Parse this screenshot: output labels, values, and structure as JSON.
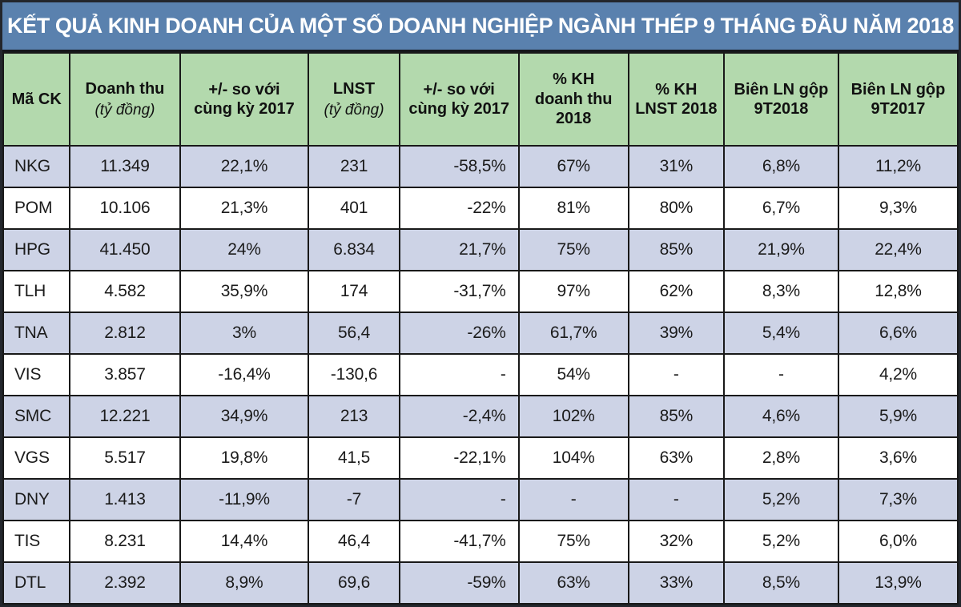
{
  "title": "KẾT QUẢ KINH DOANH CỦA MỘT SỐ DOANH NGHIỆP NGÀNH THÉP 9 THÁNG ĐẦU NĂM 2018",
  "colors": {
    "title_bar": "#5a81ae",
    "header_bg": "#b3d9ad",
    "row_alt_bg": "#cdd3e6",
    "row_bg": "#ffffff",
    "border": "#191919",
    "title_text": "#ffffff"
  },
  "chart_data": {
    "type": "table",
    "title": "KẾT QUẢ KINH DOANH CỦA MỘT SỐ DOANH NGHIỆP NGÀNH THÉP 9 THÁNG ĐẦU NĂM 2018",
    "columns": [
      {
        "label": "Mã CK",
        "lines": [
          "Mã CK"
        ],
        "sub": ""
      },
      {
        "label": "Doanh thu (tỷ đồng)",
        "lines": [
          "Doanh thu"
        ],
        "sub": "(tỷ đồng)"
      },
      {
        "label": "+/- so với cùng kỳ 2017",
        "lines": [
          "+/- so với",
          "cùng kỳ 2017"
        ],
        "sub": ""
      },
      {
        "label": "LNST (tỷ đồng)",
        "lines": [
          "LNST"
        ],
        "sub": "(tỷ đồng)"
      },
      {
        "label": "+/- so với cùng kỳ 2017",
        "lines": [
          "+/- so với",
          "cùng kỳ 2017"
        ],
        "sub": ""
      },
      {
        "label": "% KH doanh thu 2018",
        "lines": [
          "% KH",
          "doanh thu",
          "2018"
        ],
        "sub": ""
      },
      {
        "label": "% KH LNST 2018",
        "lines": [
          "% KH",
          "LNST 2018"
        ],
        "sub": ""
      },
      {
        "label": "Biên LN gộp 9T2018",
        "lines": [
          "Biên LN gộp",
          "9T2018"
        ],
        "sub": ""
      },
      {
        "label": "Biên LN gộp 9T2017",
        "lines": [
          "Biên LN gộp",
          "9T2017"
        ],
        "sub": ""
      }
    ],
    "col_widths_pct": [
      7.0,
      11.5,
      13.5,
      9.5,
      12.5,
      11.5,
      10.0,
      12.0,
      12.5
    ],
    "rows": [
      [
        "NKG",
        "11.349",
        "22,1%",
        "231",
        "-58,5%",
        "67%",
        "31%",
        "6,8%",
        "11,2%"
      ],
      [
        "POM",
        "10.106",
        "21,3%",
        "401",
        "-22%",
        "81%",
        "80%",
        "6,7%",
        "9,3%"
      ],
      [
        "HPG",
        "41.450",
        "24%",
        "6.834",
        "21,7%",
        "75%",
        "85%",
        "21,9%",
        "22,4%"
      ],
      [
        "TLH",
        "4.582",
        "35,9%",
        "174",
        "-31,7%",
        "97%",
        "62%",
        "8,3%",
        "12,8%"
      ],
      [
        "TNA",
        "2.812",
        "3%",
        "56,4",
        "-26%",
        "61,7%",
        "39%",
        "5,4%",
        "6,6%"
      ],
      [
        "VIS",
        "3.857",
        "-16,4%",
        "-130,6",
        "-",
        "54%",
        "-",
        "-",
        "4,2%"
      ],
      [
        "SMC",
        "12.221",
        "34,9%",
        "213",
        "-2,4%",
        "102%",
        "85%",
        "4,6%",
        "5,9%"
      ],
      [
        "VGS",
        "5.517",
        "19,8%",
        "41,5",
        "-22,1%",
        "104%",
        "63%",
        "2,8%",
        "3,6%"
      ],
      [
        "DNY",
        "1.413",
        "-11,9%",
        "-7",
        "-",
        "-",
        "-",
        "5,2%",
        "7,3%"
      ],
      [
        "TIS",
        "8.231",
        "14,4%",
        "46,4",
        "-41,7%",
        "75%",
        "32%",
        "5,2%",
        "6,0%"
      ],
      [
        "DTL",
        "2.392",
        "8,9%",
        "69,6",
        "-59%",
        "63%",
        "33%",
        "8,5%",
        "13,9%"
      ]
    ]
  }
}
